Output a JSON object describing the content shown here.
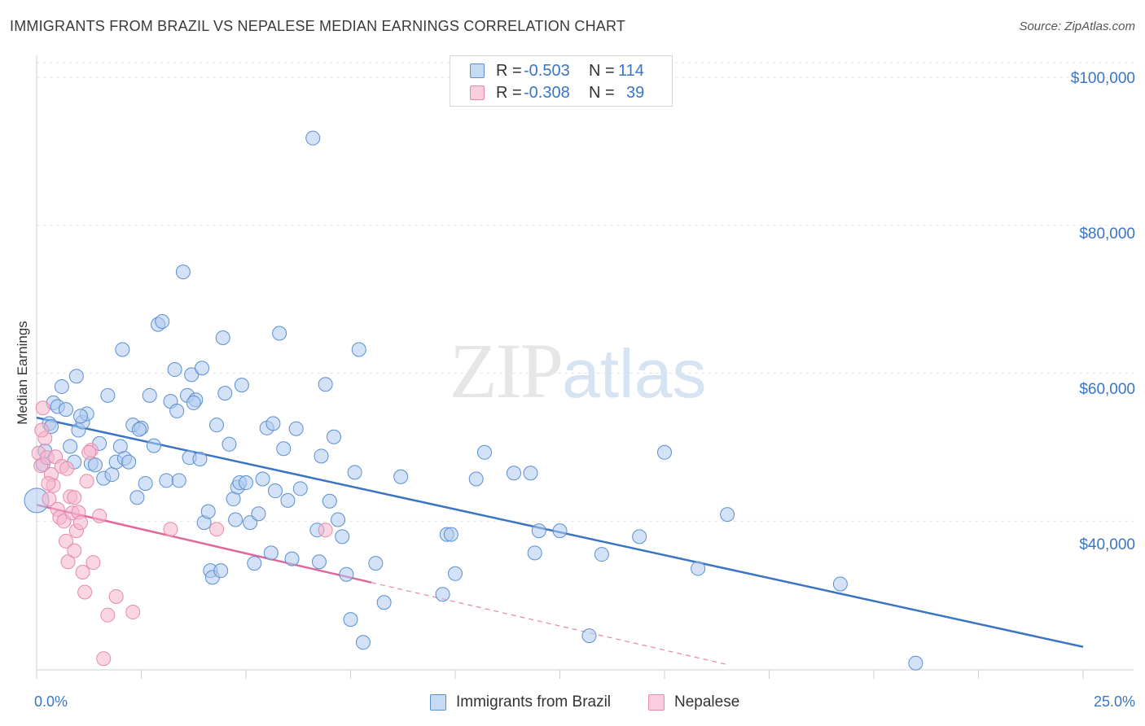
{
  "title": "IMMIGRANTS FROM BRAZIL VS NEPALESE MEDIAN EARNINGS CORRELATION CHART",
  "source": "Source: ZipAtlas.com",
  "watermark": {
    "zip": "ZIP",
    "atlas": "atlas"
  },
  "colors": {
    "blue": "#3a75c4",
    "blue_fill": "#aecbef",
    "pink": "#e0679a",
    "pink_fill": "#f5b4cc",
    "grid": "#e3e3e3"
  },
  "legend_top": [
    {
      "r_label": "R =",
      "r_value": "-0.503",
      "n_label": "N =",
      "n_value": "114"
    },
    {
      "r_label": "R =",
      "r_value": "-0.308",
      "n_label": "N =",
      "n_value": "39"
    }
  ],
  "chart_data": {
    "type": "scatter",
    "title": "IMMIGRANTS FROM BRAZIL VS NEPALESE MEDIAN EARNINGS CORRELATION CHART",
    "xlabel": "",
    "ylabel": "Median Earnings",
    "xlim": [
      0,
      25
    ],
    "ylim": [
      20000,
      102000
    ],
    "x_tick_labels": [
      "0.0%",
      "25.0%"
    ],
    "y_ticks": [
      40000,
      60000,
      80000,
      100000
    ],
    "y_tick_labels": [
      "$40,000",
      "$60,000",
      "$80,000",
      "$100,000"
    ],
    "grid": true,
    "legend_position": "bottom-center",
    "series": [
      {
        "name": "Immigrants from Brazil",
        "color": "#3a75c4",
        "r": -0.503,
        "n": 114,
        "trend": {
          "x0": 0,
          "y0": 54000,
          "x1": 25,
          "y1": 23000
        },
        "points": [
          [
            0.0,
            42800
          ],
          [
            0.2,
            49500
          ],
          [
            0.3,
            53200
          ],
          [
            0.4,
            56000
          ],
          [
            0.5,
            55500
          ],
          [
            0.6,
            58200
          ],
          [
            0.7,
            55100
          ],
          [
            0.8,
            50100
          ],
          [
            0.9,
            48000
          ],
          [
            0.95,
            59600
          ],
          [
            1.0,
            52300
          ],
          [
            1.1,
            53400
          ],
          [
            1.2,
            54500
          ],
          [
            1.3,
            47800
          ],
          [
            1.4,
            47600
          ],
          [
            1.5,
            50500
          ],
          [
            1.6,
            45800
          ],
          [
            1.7,
            57000
          ],
          [
            1.8,
            46300
          ],
          [
            1.9,
            48000
          ],
          [
            2.0,
            50100
          ],
          [
            2.05,
            63200
          ],
          [
            2.1,
            48500
          ],
          [
            2.2,
            48000
          ],
          [
            2.3,
            53000
          ],
          [
            2.4,
            43200
          ],
          [
            2.5,
            52600
          ],
          [
            2.6,
            45100
          ],
          [
            2.7,
            57000
          ],
          [
            2.8,
            50200
          ],
          [
            2.9,
            66600
          ],
          [
            3.0,
            67000
          ],
          [
            3.1,
            45500
          ],
          [
            3.2,
            56200
          ],
          [
            3.3,
            60500
          ],
          [
            3.35,
            54900
          ],
          [
            3.4,
            45500
          ],
          [
            3.5,
            73700
          ],
          [
            3.6,
            57000
          ],
          [
            3.65,
            48600
          ],
          [
            3.7,
            59800
          ],
          [
            3.8,
            56400
          ],
          [
            3.9,
            48400
          ],
          [
            3.95,
            60700
          ],
          [
            4.0,
            39800
          ],
          [
            4.1,
            41300
          ],
          [
            4.15,
            33300
          ],
          [
            4.2,
            32400
          ],
          [
            4.3,
            53000
          ],
          [
            4.4,
            33300
          ],
          [
            4.45,
            64800
          ],
          [
            4.5,
            57300
          ],
          [
            4.6,
            50400
          ],
          [
            4.7,
            43000
          ],
          [
            4.75,
            40200
          ],
          [
            4.8,
            44600
          ],
          [
            4.85,
            45200
          ],
          [
            4.9,
            58400
          ],
          [
            5.0,
            45200
          ],
          [
            5.1,
            39800
          ],
          [
            5.2,
            34300
          ],
          [
            5.3,
            41000
          ],
          [
            5.4,
            45700
          ],
          [
            5.5,
            52600
          ],
          [
            5.6,
            35700
          ],
          [
            5.7,
            44100
          ],
          [
            5.8,
            65400
          ],
          [
            5.9,
            49800
          ],
          [
            6.0,
            42800
          ],
          [
            6.1,
            34900
          ],
          [
            6.2,
            52500
          ],
          [
            6.3,
            44400
          ],
          [
            6.6,
            91800
          ],
          [
            6.7,
            38800
          ],
          [
            6.75,
            34500
          ],
          [
            6.8,
            48800
          ],
          [
            6.9,
            58500
          ],
          [
            7.0,
            42700
          ],
          [
            7.1,
            51400
          ],
          [
            7.2,
            40200
          ],
          [
            7.3,
            37900
          ],
          [
            7.4,
            32800
          ],
          [
            7.5,
            26700
          ],
          [
            7.6,
            46600
          ],
          [
            7.7,
            63200
          ],
          [
            7.8,
            23600
          ],
          [
            8.1,
            34300
          ],
          [
            8.3,
            29000
          ],
          [
            8.7,
            46000
          ],
          [
            9.7,
            30100
          ],
          [
            9.8,
            38200
          ],
          [
            9.9,
            38200
          ],
          [
            10.0,
            32900
          ],
          [
            10.5,
            45700
          ],
          [
            10.7,
            49300
          ],
          [
            11.4,
            46500
          ],
          [
            11.8,
            46500
          ],
          [
            11.9,
            35700
          ],
          [
            12.0,
            38700
          ],
          [
            12.5,
            38700
          ],
          [
            13.2,
            24500
          ],
          [
            13.5,
            35500
          ],
          [
            14.4,
            37900
          ],
          [
            15.0,
            49300
          ],
          [
            15.8,
            33600
          ],
          [
            16.5,
            40900
          ],
          [
            19.2,
            31500
          ],
          [
            21.0,
            20800
          ],
          [
            0.15,
            47700
          ],
          [
            0.35,
            52800
          ],
          [
            1.05,
            54200
          ],
          [
            2.45,
            52400
          ],
          [
            3.75,
            56000
          ],
          [
            5.65,
            53200
          ]
        ]
      },
      {
        "name": "Nepalese",
        "color": "#e0679a",
        "r": -0.308,
        "n": 39,
        "trend": {
          "x0": 0,
          "y0": 42200,
          "x1": 8,
          "y1": 31700,
          "dash_x1": 16.5,
          "dash_y1": 20600
        },
        "points": [
          [
            0.05,
            49200
          ],
          [
            0.1,
            47500
          ],
          [
            0.15,
            55300
          ],
          [
            0.2,
            51200
          ],
          [
            0.25,
            48600
          ],
          [
            0.3,
            43000
          ],
          [
            0.35,
            46300
          ],
          [
            0.4,
            44800
          ],
          [
            0.45,
            48700
          ],
          [
            0.5,
            41600
          ],
          [
            0.55,
            40500
          ],
          [
            0.6,
            47400
          ],
          [
            0.65,
            40000
          ],
          [
            0.7,
            37300
          ],
          [
            0.75,
            34500
          ],
          [
            0.8,
            43300
          ],
          [
            0.85,
            41100
          ],
          [
            0.9,
            36000
          ],
          [
            0.95,
            38700
          ],
          [
            1.0,
            41200
          ],
          [
            1.05,
            39800
          ],
          [
            1.1,
            33100
          ],
          [
            1.15,
            30400
          ],
          [
            1.2,
            45400
          ],
          [
            1.3,
            49600
          ],
          [
            1.35,
            34400
          ],
          [
            1.5,
            40700
          ],
          [
            1.6,
            21400
          ],
          [
            1.7,
            27300
          ],
          [
            1.9,
            29800
          ],
          [
            2.3,
            27700
          ],
          [
            3.2,
            38900
          ],
          [
            4.3,
            38900
          ],
          [
            6.9,
            38800
          ],
          [
            0.12,
            52300
          ],
          [
            0.28,
            45100
          ],
          [
            0.72,
            47100
          ],
          [
            1.25,
            49300
          ],
          [
            0.9,
            43200
          ]
        ]
      }
    ]
  },
  "legend_bottom": [
    {
      "label": "Immigrants from Brazil"
    },
    {
      "label": "Nepalese"
    }
  ]
}
